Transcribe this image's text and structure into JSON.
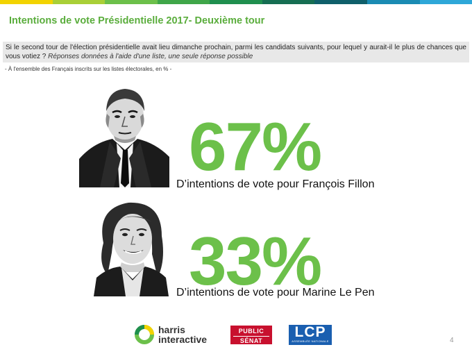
{
  "colors": {
    "accent_green": "#6cc04a",
    "title_green": "#5aad3c",
    "topbar": [
      "#f2d300",
      "#a9cf37",
      "#6cc04a",
      "#3fa649",
      "#1f8f4e",
      "#166e52",
      "#0f5f6a",
      "#1a8bb3",
      "#2ea7d8"
    ]
  },
  "title": "Intentions de vote Présidentielle 2017- Deuxième tour",
  "question": {
    "text": "Si le second tour de l'élection présidentielle avait lieu dimanche prochain, parmi les candidats suivants, pour lequel y aurait-il le plus de chances que vous votiez ?",
    "instruction": "Réponses données à l'aide d'une liste, une seule réponse possible"
  },
  "scope": "- À l'ensemble des Français inscrits sur les listes électorales, en % -",
  "results": [
    {
      "percent": "67%",
      "caption": "D’intentions de vote pour François Fillon"
    },
    {
      "percent": "33%",
      "caption": "D’intentions de vote pour Marine Le Pen"
    }
  ],
  "logos": {
    "harris": [
      "harris",
      "interactive"
    ],
    "public_senat": [
      "PUBLIC",
      "SÉNAT"
    ],
    "lcp": {
      "main": "LCP",
      "sub": "ASSEMBLÉE NATIONALE"
    }
  },
  "page_number": "4"
}
